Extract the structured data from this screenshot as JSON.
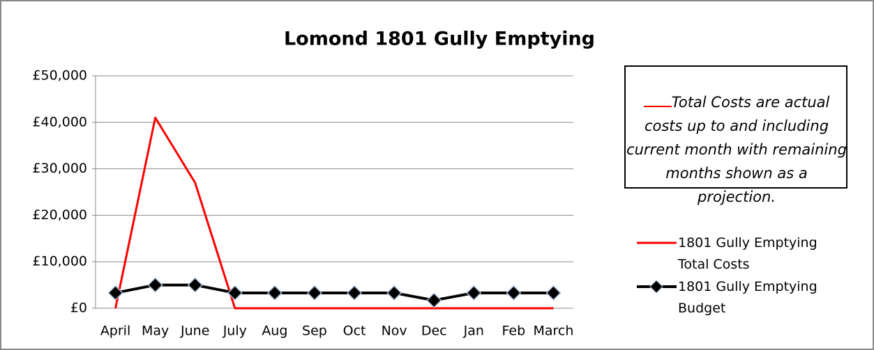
{
  "chart_data": {
    "type": "line",
    "title": "Lomond 1801 Gully Emptying",
    "categories": [
      "April",
      "May",
      "June",
      "July",
      "Aug",
      "Sep",
      "Oct",
      "Nov",
      "Dec",
      "Jan",
      "Feb",
      "March"
    ],
    "series": [
      {
        "name": "1801 Gully Emptying Total Costs",
        "color": "#ff0000",
        "values": [
          0,
          41000,
          27000,
          0,
          0,
          0,
          0,
          0,
          0,
          0,
          0,
          0
        ]
      },
      {
        "name": "1801 Gully Emptying Budget",
        "color": "#000000",
        "values": [
          3300,
          5000,
          5000,
          3300,
          3300,
          3300,
          3300,
          3300,
          1700,
          3300,
          3300,
          3300
        ]
      }
    ],
    "ylim": [
      0,
      50000
    ],
    "yticks": [
      {
        "value": 0,
        "label": "£0"
      },
      {
        "value": 10000,
        "label": "£10,000"
      },
      {
        "value": 20000,
        "label": "£20,000"
      },
      {
        "value": 30000,
        "label": "£30,000"
      },
      {
        "value": 40000,
        "label": "£40,000"
      },
      {
        "value": 50000,
        "label": "£50,000"
      }
    ],
    "grid": true,
    "annotation": "Total Costs are actual costs up to and including current month with remaining months shown as a projection."
  }
}
